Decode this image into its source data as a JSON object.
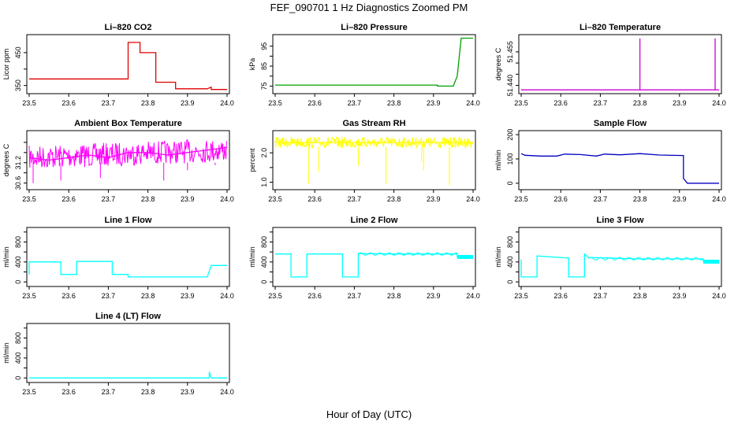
{
  "title": "FEF_090701  1 Hz Diagnostics Zoomed PM",
  "xlabel": "Hour of Day (UTC)",
  "chart_data": [
    {
      "type": "line",
      "title": "Li–820 CO2",
      "ylabel": "Licor ppm",
      "color": "#e00000",
      "xlim": [
        23.5,
        24.0
      ],
      "ylim": [
        330,
        500
      ],
      "xticks": [
        23.5,
        23.6,
        23.7,
        23.8,
        23.9,
        24.0
      ],
      "yticks": [
        350,
        400,
        450
      ],
      "ytick_labels": [
        "350",
        "",
        "450"
      ],
      "series": [
        {
          "x": [
            23.5,
            23.75,
            23.75,
            23.78,
            23.78,
            23.82,
            23.82,
            23.87,
            23.87,
            23.95,
            23.96,
            23.96,
            24.0
          ],
          "y": [
            370,
            370,
            481,
            481,
            450,
            450,
            360,
            360,
            340,
            340,
            345,
            338,
            338
          ]
        }
      ]
    },
    {
      "type": "line",
      "title": "Li–820 Pressure",
      "ylabel": "kPa",
      "color": "#00a000",
      "xlim": [
        23.5,
        24.0
      ],
      "ylim": [
        72,
        100
      ],
      "xticks": [
        23.5,
        23.6,
        23.7,
        23.8,
        23.9,
        24.0
      ],
      "yticks": [
        75,
        80,
        85,
        90,
        95
      ],
      "ytick_labels": [
        "75",
        "",
        "85",
        "",
        "95"
      ],
      "series": [
        {
          "x": [
            23.5,
            23.91,
            23.91,
            23.95,
            23.96,
            23.97,
            24.0
          ],
          "y": [
            75.5,
            75.5,
            75,
            75,
            80,
            99,
            99
          ]
        }
      ]
    },
    {
      "type": "line",
      "title": "Li–820 Temperature",
      "ylabel": "degrees C",
      "color": "#d000d0",
      "xlim": [
        23.5,
        24.0
      ],
      "ylim": [
        51.437,
        51.462
      ],
      "xticks": [
        23.5,
        23.6,
        23.7,
        23.8,
        23.9,
        24.0
      ],
      "yticks": [
        51.44,
        51.445,
        51.45,
        51.455
      ],
      "ytick_labels": [
        "51.440",
        "",
        "",
        "51.455"
      ],
      "series": [
        {
          "x": [
            23.5,
            23.8,
            23.8,
            23.8,
            23.99,
            23.99,
            23.99,
            24.0
          ],
          "y": [
            51.438,
            51.438,
            51.461,
            51.438,
            51.438,
            51.461,
            51.438,
            51.438
          ]
        }
      ]
    },
    {
      "type": "line",
      "title": "Ambient Box Temperature",
      "ylabel": "degrees C",
      "color": "#ff00ff",
      "xlim": [
        23.5,
        24.0
      ],
      "ylim": [
        30.5,
        31.6
      ],
      "xticks": [
        23.5,
        23.6,
        23.7,
        23.8,
        23.9,
        24.0
      ],
      "yticks": [
        30.6,
        30.8,
        31.0,
        31.2,
        31.4
      ],
      "ytick_labels": [
        "30.6",
        "",
        "31.2",
        "",
        ""
      ],
      "series": [
        {
          "x": [
            23.5,
            23.55,
            23.6,
            23.65,
            23.7,
            23.75,
            23.8,
            23.85,
            23.9,
            23.95,
            24.0
          ],
          "y": [
            31.1,
            31.05,
            31.1,
            31.15,
            31.1,
            31.2,
            31.2,
            31.15,
            31.2,
            31.25,
            31.3
          ]
        }
      ]
    },
    {
      "type": "line",
      "title": "Gas Stream RH",
      "ylabel": "percent",
      "color": "#ffff00",
      "xlim": [
        23.5,
        24.0
      ],
      "ylim": [
        0.8,
        2.7
      ],
      "xticks": [
        23.5,
        23.6,
        23.7,
        23.8,
        23.9,
        24.0
      ],
      "yticks": [
        1.0,
        1.5,
        2.0
      ],
      "ytick_labels": [
        "1.0",
        "",
        "2.0"
      ],
      "series": [
        {
          "x": [
            23.5,
            23.6,
            23.7,
            23.8,
            23.9,
            24.0
          ],
          "y": [
            2.35,
            2.35,
            2.35,
            2.35,
            2.35,
            2.35
          ]
        }
      ]
    },
    {
      "type": "line",
      "title": "Sample Flow",
      "ylabel": "ml/min",
      "color": "#0000c0",
      "xlim": [
        23.5,
        24.0
      ],
      "ylim": [
        -20,
        210
      ],
      "xticks": [
        23.5,
        23.6,
        23.7,
        23.8,
        23.9,
        24.0
      ],
      "yticks": [
        0,
        100,
        200
      ],
      "ytick_labels": [
        "0",
        "100",
        "200"
      ],
      "series": [
        {
          "x": [
            23.5,
            23.51,
            23.55,
            23.59,
            23.61,
            23.65,
            23.69,
            23.71,
            23.75,
            23.8,
            23.85,
            23.91,
            23.91,
            23.92,
            24.0
          ],
          "y": [
            122,
            115,
            112,
            112,
            120,
            118,
            112,
            120,
            117,
            122,
            116,
            114,
            20,
            0,
            0
          ]
        }
      ]
    },
    {
      "type": "line",
      "title": "Line 1 Flow",
      "ylabel": "ml/min",
      "color": "#00ffff",
      "xlim": [
        23.5,
        24.0
      ],
      "ylim": [
        -60,
        1060
      ],
      "xticks": [
        23.5,
        23.6,
        23.7,
        23.8,
        23.9,
        24.0
      ],
      "yticks": [
        0,
        200,
        400,
        600,
        800,
        1000
      ],
      "ytick_labels": [
        "0",
        "",
        "400",
        "",
        "800",
        ""
      ],
      "series": [
        {
          "x": [
            23.5,
            23.5,
            23.58,
            23.58,
            23.62,
            23.62,
            23.71,
            23.71,
            23.75,
            23.75,
            23.95,
            23.96,
            24.0
          ],
          "y": [
            150,
            400,
            400,
            150,
            150,
            410,
            410,
            150,
            150,
            100,
            100,
            330,
            330
          ]
        }
      ]
    },
    {
      "type": "line",
      "title": "Line 2 Flow",
      "ylabel": "ml/min",
      "color": "#00ffff",
      "xlim": [
        23.5,
        24.0
      ],
      "ylim": [
        -60,
        1060
      ],
      "xticks": [
        23.5,
        23.6,
        23.7,
        23.8,
        23.9,
        24.0
      ],
      "yticks": [
        0,
        200,
        400,
        600,
        800,
        1000
      ],
      "ytick_labels": [
        "0",
        "",
        "400",
        "",
        "800",
        ""
      ],
      "series": [
        {
          "x": [
            23.5,
            23.54,
            23.54,
            23.58,
            23.58,
            23.67,
            23.67,
            23.71,
            23.71,
            23.8,
            23.9,
            23.96,
            23.96,
            24.0
          ],
          "y": [
            560,
            560,
            100,
            100,
            560,
            560,
            100,
            100,
            570,
            560,
            560,
            560,
            500,
            500
          ]
        }
      ]
    },
    {
      "type": "line",
      "title": "Line 3 Flow",
      "ylabel": "ml/min",
      "color": "#00ffff",
      "xlim": [
        23.5,
        24.0
      ],
      "ylim": [
        -60,
        1060
      ],
      "xticks": [
        23.5,
        23.6,
        23.7,
        23.8,
        23.9,
        24.0
      ],
      "yticks": [
        0,
        200,
        400,
        600,
        800,
        1000
      ],
      "ytick_labels": [
        "0",
        "",
        "400",
        "",
        "800",
        ""
      ],
      "series": [
        {
          "x": [
            23.5,
            23.5,
            23.54,
            23.54,
            23.62,
            23.62,
            23.66,
            23.66,
            23.67,
            23.8,
            23.9,
            23.96,
            23.96,
            24.0
          ],
          "y": [
            450,
            100,
            100,
            520,
            480,
            100,
            100,
            560,
            490,
            460,
            460,
            460,
            420,
            420
          ]
        }
      ]
    },
    {
      "type": "line",
      "title": "Line 4 (LT) Flow",
      "ylabel": "ml/min",
      "color": "#00ffff",
      "xlim": [
        23.5,
        24.0
      ],
      "ylim": [
        -60,
        1060
      ],
      "xticks": [
        23.5,
        23.6,
        23.7,
        23.8,
        23.9,
        24.0
      ],
      "yticks": [
        0,
        200,
        400,
        600,
        800,
        1000
      ],
      "ytick_labels": [
        "0",
        "",
        "400",
        "",
        "800",
        ""
      ],
      "series": [
        {
          "x": [
            23.5,
            23.955,
            23.955,
            23.96,
            24.0
          ],
          "y": [
            0,
            0,
            120,
            0,
            0
          ]
        }
      ]
    }
  ]
}
